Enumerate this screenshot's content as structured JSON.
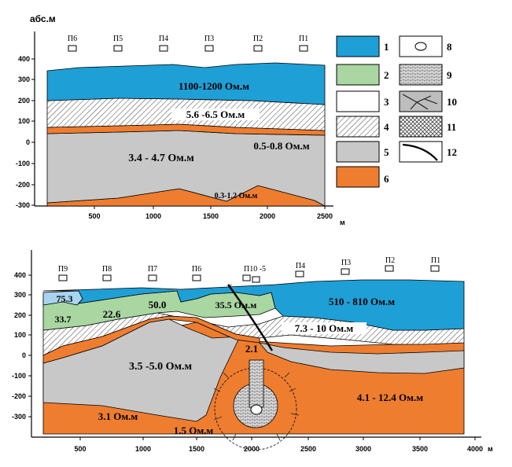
{
  "profile1": {
    "y_title": "абс.м",
    "x_unit": "м",
    "y_ticks": [
      "400",
      "300",
      "200",
      "100",
      "0",
      "-100",
      "-200",
      "-300"
    ],
    "x_ticks": [
      "500",
      "1000",
      "1500",
      "2000",
      "2500"
    ],
    "stations": [
      "П6",
      "П5",
      "П4",
      "П3",
      "П2",
      "П1"
    ],
    "labels": {
      "top": "1100-1200 Ом.м",
      "band": "5.6 -6.5 Ом.м",
      "right": "0.5-0.8 Ом.м",
      "middle": "3.4 - 4.7 Ом.м",
      "bottom": "0.3-1.2 Ом.м"
    }
  },
  "profile2": {
    "x_unit": "м",
    "y_ticks": [
      "400",
      "300",
      "200",
      "100",
      "0",
      "-100",
      "-200",
      "-300"
    ],
    "x_ticks": [
      "500",
      "1000",
      "1500",
      "2000",
      "2500",
      "3000",
      "3500",
      "4000"
    ],
    "stations": [
      "П9",
      "П8",
      "П7",
      "П6",
      "П10 -5",
      "П4",
      "П3",
      "П2",
      "П1"
    ],
    "labels": {
      "l753": "75.3",
      "l337": "33.7",
      "l226": "22.6",
      "l500": "50.0",
      "l355": "35.5 Ом.м",
      "l510": "510 - 810 Ом.м",
      "l73": "7.3 - 10 Ом.м",
      "l21": "2.1",
      "l35": "3.5 -5.0 Ом.м",
      "l31": "3.1 Ом.м",
      "l15": "1.5 Ом.м",
      "l41": "4.1 - 12.4 Ом.м"
    }
  },
  "legend": {
    "items": [
      "1",
      "2",
      "3",
      "4",
      "5",
      "6",
      "8",
      "9",
      "10",
      "11",
      "12"
    ]
  },
  "colors": {
    "blue": "#1e9fd6",
    "green": "#a9d6a1",
    "gray": "#c8c8c8",
    "orange": "#ee7d2f",
    "lightblue": "#a8d4ef"
  }
}
